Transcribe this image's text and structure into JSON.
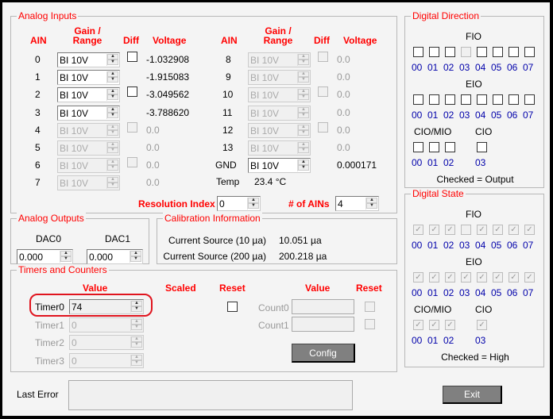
{
  "analog_inputs": {
    "title": "Analog Inputs",
    "headers": {
      "ain": "AIN",
      "gain1": "Gain /",
      "gain2": "Range",
      "diff": "Diff",
      "voltage": "Voltage"
    },
    "left": [
      {
        "ain": "0",
        "range": "BI 10V",
        "voltage": "-1.032908",
        "diff": true,
        "enabled": true
      },
      {
        "ain": "1",
        "range": "BI 10V",
        "voltage": "-1.915083",
        "diff": false,
        "enabled": true
      },
      {
        "ain": "2",
        "range": "BI 10V",
        "voltage": "-3.049562",
        "diff": true,
        "enabled": true
      },
      {
        "ain": "3",
        "range": "BI 10V",
        "voltage": "-3.788620",
        "diff": false,
        "enabled": true
      },
      {
        "ain": "4",
        "range": "BI 10V",
        "voltage": "0.0",
        "diff": true,
        "enabled": false
      },
      {
        "ain": "5",
        "range": "BI 10V",
        "voltage": "0.0",
        "diff": false,
        "enabled": false
      },
      {
        "ain": "6",
        "range": "BI 10V",
        "voltage": "0.0",
        "diff": true,
        "enabled": false
      },
      {
        "ain": "7",
        "range": "BI 10V",
        "voltage": "0.0",
        "diff": false,
        "enabled": false
      }
    ],
    "right": [
      {
        "ain": "8",
        "range": "BI 10V",
        "voltage": "0.0",
        "diff": true,
        "enabled": false
      },
      {
        "ain": "9",
        "range": "BI 10V",
        "voltage": "0.0",
        "diff": false,
        "enabled": false
      },
      {
        "ain": "10",
        "range": "BI 10V",
        "voltage": "0.0",
        "diff": true,
        "enabled": false
      },
      {
        "ain": "11",
        "range": "BI 10V",
        "voltage": "0.0",
        "diff": false,
        "enabled": false
      },
      {
        "ain": "12",
        "range": "BI 10V",
        "voltage": "0.0",
        "diff": true,
        "enabled": false
      },
      {
        "ain": "13",
        "range": "BI 10V",
        "voltage": "0.0",
        "diff": false,
        "enabled": false
      },
      {
        "ain": "GND",
        "range": "BI 10V",
        "voltage": "0.000171",
        "diff": false,
        "enabled": true
      }
    ],
    "temp_label": "Temp",
    "temp_value": "23.4 °C",
    "resolution_label": "Resolution Index",
    "resolution_value": "0",
    "num_ains_label": "# of AINs",
    "num_ains_value": "4"
  },
  "analog_outputs": {
    "title": "Analog Outputs",
    "dac0_label": "DAC0",
    "dac0_value": "0.000",
    "dac1_label": "DAC1",
    "dac1_value": "0.000"
  },
  "calibration": {
    "title": "Calibration Information",
    "rows": [
      {
        "label": "Current Source (10 µa)",
        "value": "10.051 µa"
      },
      {
        "label": "Current Source (200 µa)",
        "value": "200.218 µa"
      }
    ]
  },
  "timers": {
    "title": "Timers and Counters",
    "h_value": "Value",
    "h_scaled": "Scaled",
    "h_reset": "Reset",
    "h_cvalue": "Value",
    "h_creset": "Reset",
    "rows": [
      {
        "label": "Timer0",
        "value": "74",
        "enabled": true
      },
      {
        "label": "Timer1",
        "value": "0",
        "enabled": false
      },
      {
        "label": "Timer2",
        "value": "0",
        "enabled": false
      },
      {
        "label": "Timer3",
        "value": "0",
        "enabled": false
      }
    ],
    "counters": [
      {
        "label": "Count0",
        "value": ""
      },
      {
        "label": "Count1",
        "value": ""
      }
    ],
    "config_label": "Config",
    "highlight_color": "#e0141e"
  },
  "last_error": {
    "label": "Last Error",
    "value": ""
  },
  "exit_label": "Exit",
  "digital_direction": {
    "title": "Digital Direction",
    "fio_label": "FIO",
    "eio_label": "EIO",
    "ciomio_label": "CIO/MIO",
    "cio_label": "CIO",
    "note": "Checked = Output",
    "fio": [
      false,
      false,
      false,
      false,
      false,
      false,
      false,
      false
    ],
    "fio_disabled": [
      3
    ],
    "eio": [
      false,
      false,
      false,
      false,
      false,
      false,
      false,
      false
    ],
    "ciomio": [
      false,
      false,
      false
    ],
    "cio": [
      false
    ]
  },
  "digital_state": {
    "title": "Digital State",
    "fio_label": "FIO",
    "eio_label": "EIO",
    "ciomio_label": "CIO/MIO",
    "cio_label": "CIO",
    "note": "Checked = High",
    "fio": [
      true,
      true,
      true,
      false,
      true,
      true,
      true,
      true
    ],
    "eio": [
      true,
      true,
      true,
      true,
      true,
      true,
      true,
      true
    ],
    "ciomio": [
      true,
      true,
      true
    ],
    "cio": [
      true
    ]
  },
  "bit_labels": [
    "00",
    "01",
    "02",
    "03",
    "04",
    "05",
    "06",
    "07"
  ],
  "colors": {
    "label_red": "#ff0000",
    "bit_label_blue": "#0000aa",
    "background": "#f4f4f4"
  }
}
